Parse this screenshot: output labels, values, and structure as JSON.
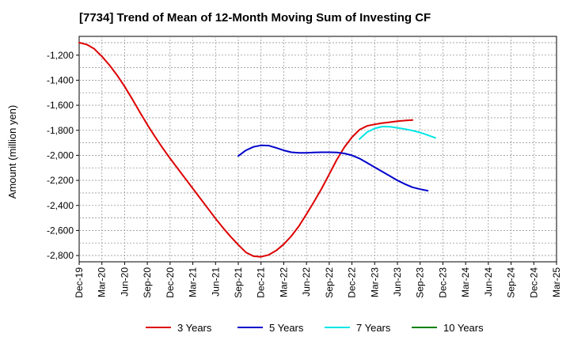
{
  "chart_data": {
    "type": "line",
    "title": "[7734]  Trend of Mean of 12-Month Moving Sum of Investing CF",
    "xlabel": "",
    "ylabel": "Amount (million yen)",
    "ylim": [
      -2850,
      -1050
    ],
    "yticks": [
      -1200,
      -1400,
      -1600,
      -1800,
      -2000,
      -2200,
      -2400,
      -2600,
      -2800
    ],
    "ytick_labels": [
      "-1,200",
      "-1,400",
      "-1,600",
      "-1,800",
      "-2,000",
      "-2,200",
      "-2,400",
      "-2,600",
      "-2,800"
    ],
    "xticks": [
      "Dec-19",
      "Mar-20",
      "Jun-20",
      "Sep-20",
      "Dec-20",
      "Mar-21",
      "Jun-21",
      "Sep-21",
      "Dec-21",
      "Mar-22",
      "Jun-22",
      "Sep-22",
      "Dec-22",
      "Mar-23",
      "Jun-23",
      "Sep-23",
      "Dec-23",
      "Mar-24",
      "Jun-24",
      "Sep-24",
      "Dec-24",
      "Mar-25"
    ],
    "grid": true,
    "legend_position": "bottom",
    "series": [
      {
        "name": "3 Years",
        "color": "#dd0000",
        "points": [
          [
            0,
            -1100
          ],
          [
            1,
            -1115
          ],
          [
            2,
            -1150
          ],
          [
            3,
            -1210
          ],
          [
            4,
            -1280
          ],
          [
            5,
            -1360
          ],
          [
            6,
            -1450
          ],
          [
            7,
            -1550
          ],
          [
            8,
            -1655
          ],
          [
            9,
            -1755
          ],
          [
            10,
            -1850
          ],
          [
            11,
            -1940
          ],
          [
            12,
            -2025
          ],
          [
            13,
            -2105
          ],
          [
            14,
            -2185
          ],
          [
            15,
            -2265
          ],
          [
            16,
            -2345
          ],
          [
            17,
            -2425
          ],
          [
            18,
            -2505
          ],
          [
            19,
            -2580
          ],
          [
            20,
            -2650
          ],
          [
            21,
            -2715
          ],
          [
            22,
            -2775
          ],
          [
            23,
            -2805
          ],
          [
            24,
            -2810
          ],
          [
            25,
            -2795
          ],
          [
            26,
            -2760
          ],
          [
            27,
            -2710
          ],
          [
            28,
            -2645
          ],
          [
            29,
            -2565
          ],
          [
            30,
            -2470
          ],
          [
            31,
            -2370
          ],
          [
            32,
            -2265
          ],
          [
            33,
            -2150
          ],
          [
            34,
            -2035
          ],
          [
            35,
            -1935
          ],
          [
            36,
            -1855
          ],
          [
            37,
            -1795
          ],
          [
            38,
            -1765
          ],
          [
            39,
            -1752
          ],
          [
            40,
            -1742
          ],
          [
            41,
            -1735
          ],
          [
            42,
            -1728
          ],
          [
            43,
            -1722
          ],
          [
            44,
            -1718
          ]
        ]
      },
      {
        "name": "5 Years",
        "color": "#0000cc",
        "points": [
          [
            21,
            -2005
          ],
          [
            22,
            -1960
          ],
          [
            23,
            -1932
          ],
          [
            24,
            -1920
          ],
          [
            25,
            -1922
          ],
          [
            26,
            -1940
          ],
          [
            27,
            -1960
          ],
          [
            28,
            -1975
          ],
          [
            29,
            -1980
          ],
          [
            30,
            -1980
          ],
          [
            31,
            -1977
          ],
          [
            32,
            -1975
          ],
          [
            33,
            -1975
          ],
          [
            34,
            -1977
          ],
          [
            35,
            -1985
          ],
          [
            36,
            -2000
          ],
          [
            37,
            -2025
          ],
          [
            38,
            -2060
          ],
          [
            39,
            -2095
          ],
          [
            40,
            -2130
          ],
          [
            41,
            -2165
          ],
          [
            42,
            -2200
          ],
          [
            43,
            -2230
          ],
          [
            44,
            -2255
          ],
          [
            45,
            -2270
          ],
          [
            46,
            -2282
          ]
        ]
      },
      {
        "name": "7 Years",
        "color": "#00e5e5",
        "points": [
          [
            37,
            -1870
          ],
          [
            38,
            -1815
          ],
          [
            39,
            -1785
          ],
          [
            40,
            -1770
          ],
          [
            41,
            -1772
          ],
          [
            42,
            -1780
          ],
          [
            43,
            -1790
          ],
          [
            44,
            -1802
          ],
          [
            45,
            -1818
          ],
          [
            46,
            -1838
          ],
          [
            47,
            -1860
          ]
        ]
      },
      {
        "name": "10 Years",
        "color": "#008000",
        "points": []
      }
    ]
  }
}
